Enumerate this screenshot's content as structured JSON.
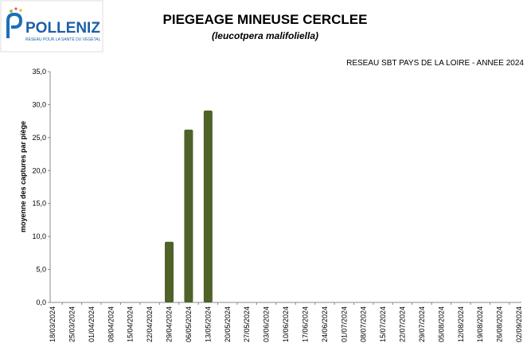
{
  "logo": {
    "name": "POLLENIZ",
    "tagline": "RESEAU POUR LA SANTÉ DU VÉGÉTAL"
  },
  "chart_data": {
    "type": "bar",
    "title": "PIEGEAGE MINEUSE CERCLEE",
    "subtitle": "(leucotpera malifoliella)",
    "annotation": "RESEAU SBT PAYS DE LA LOIRE - ANNEE 2024",
    "y_label": "moyenne des captures par piège",
    "categories": [
      "18/03/2024",
      "25/03/2024",
      "01/04/2024",
      "08/04/2024",
      "15/04/2024",
      "22/04/2024",
      "29/04/2024",
      "06/05/2024",
      "13/05/2024",
      "20/05/2024",
      "27/05/2024",
      "03/06/2024",
      "10/06/2024",
      "17/06/2024",
      "24/06/2024",
      "01/07/2024",
      "08/07/2024",
      "15/07/2024",
      "22/07/2024",
      "29/07/2024",
      "05/08/2024",
      "12/08/2024",
      "19/08/2024",
      "26/08/2024",
      "02/09/2024"
    ],
    "values": [
      null,
      null,
      null,
      null,
      null,
      null,
      9.2,
      26.2,
      29.1,
      null,
      null,
      null,
      null,
      null,
      null,
      null,
      null,
      null,
      null,
      null,
      null,
      null,
      null,
      null,
      null
    ],
    "color": "#4f6228",
    "ylim": [
      0,
      35
    ],
    "yticks": [
      {
        "value": 0,
        "label": "0,0"
      },
      {
        "value": 5,
        "label": "5,0"
      },
      {
        "value": 10,
        "label": "10,0"
      },
      {
        "value": 15,
        "label": "15,0"
      },
      {
        "value": 20,
        "label": "20,0"
      },
      {
        "value": 25,
        "label": "25,0"
      },
      {
        "value": 30,
        "label": "30,0"
      },
      {
        "value": 35,
        "label": "35,0"
      }
    ],
    "grid": false
  }
}
